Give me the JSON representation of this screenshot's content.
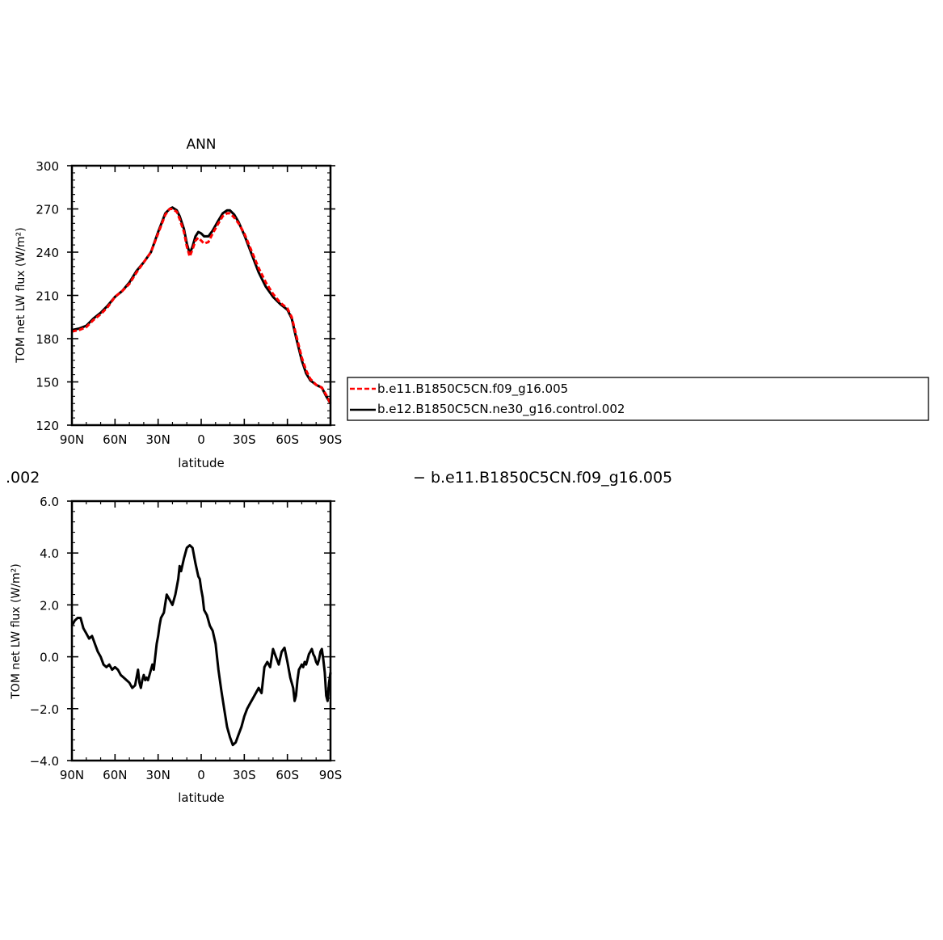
{
  "header": {
    "left_fragment": ".002",
    "right_fragment": "− b.e11.B1850C5CN.f09_g16.005"
  },
  "legend": {
    "entries": [
      {
        "label": "b.e11.B1850C5CN.f09_g16.005",
        "color": "#ff0000",
        "dash": "dashed"
      },
      {
        "label": "b.e12.B1850C5CN.ne30_g16.control.002",
        "color": "#000000",
        "dash": "solid"
      }
    ]
  },
  "chart_data": [
    {
      "type": "line",
      "title": "ANN",
      "xlabel": "latitude",
      "ylabel": "TOM net LW flux (W/m²)",
      "xlim": [
        90,
        -90
      ],
      "ylim": [
        120,
        300
      ],
      "x_ticks": [
        {
          "value": 90,
          "label": "90N"
        },
        {
          "value": 60,
          "label": "60N"
        },
        {
          "value": 30,
          "label": "30N"
        },
        {
          "value": 0,
          "label": "0"
        },
        {
          "value": -30,
          "label": "30S"
        },
        {
          "value": -60,
          "label": "60S"
        },
        {
          "value": -90,
          "label": "90S"
        }
      ],
      "y_ticks": [
        {
          "value": 300,
          "label": "300"
        },
        {
          "value": 270,
          "label": "270"
        },
        {
          "value": 240,
          "label": "240"
        },
        {
          "value": 210,
          "label": "210"
        },
        {
          "value": 180,
          "label": "180"
        },
        {
          "value": 150,
          "label": "150"
        },
        {
          "value": 120,
          "label": "120"
        }
      ],
      "series": [
        {
          "name": "b.e11.B1850C5CN.f09_g16.005",
          "color": "#ff0000",
          "dash": "dashed",
          "x": [
            90,
            85,
            80,
            75,
            70,
            65,
            60,
            55,
            50,
            45,
            40,
            35,
            30,
            25,
            22,
            20,
            17,
            15,
            12,
            10,
            8,
            6,
            4,
            2,
            0,
            -2,
            -5,
            -8,
            -12,
            -15,
            -18,
            -20,
            -23,
            -26,
            -30,
            -35,
            -40,
            -45,
            -50,
            -55,
            -60,
            -63,
            -66,
            -70,
            -73,
            -76,
            -80,
            -84,
            -87,
            -90
          ],
          "y": [
            185,
            186,
            188,
            193,
            197,
            202,
            209,
            213,
            218,
            226,
            233,
            240,
            253,
            266,
            270,
            270,
            268,
            263,
            254,
            244,
            237,
            242,
            248,
            250,
            248,
            246,
            247,
            253,
            260,
            265,
            267,
            267,
            264,
            260,
            253,
            241,
            229,
            219,
            211,
            205,
            201,
            195,
            183,
            167,
            158,
            152,
            148,
            146,
            141,
            135
          ]
        },
        {
          "name": "b.e12.B1850C5CN.ne30_g16.control.002",
          "color": "#000000",
          "dash": "solid",
          "x": [
            90,
            85,
            80,
            75,
            70,
            65,
            60,
            55,
            50,
            45,
            40,
            35,
            30,
            25,
            22,
            20,
            17,
            15,
            12,
            10,
            8,
            6,
            4,
            2,
            0,
            -2,
            -5,
            -8,
            -12,
            -15,
            -18,
            -20,
            -23,
            -26,
            -30,
            -35,
            -40,
            -45,
            -50,
            -55,
            -60,
            -63,
            -66,
            -70,
            -73,
            -76,
            -80,
            -84,
            -87,
            -90
          ],
          "y": [
            186,
            187,
            189,
            194,
            198,
            203,
            209,
            213,
            219,
            227,
            233,
            240,
            254,
            267,
            270,
            271,
            269,
            265,
            256,
            246,
            239,
            244,
            251,
            254,
            253,
            251,
            251,
            255,
            262,
            267,
            269,
            269,
            266,
            261,
            252,
            239,
            226,
            216,
            209,
            204,
            200,
            194,
            181,
            165,
            156,
            151,
            148,
            146,
            140,
            135
          ]
        }
      ]
    },
    {
      "type": "line",
      "title": "",
      "xlabel": "latitude",
      "ylabel": "TOM net LW flux (W/m²)",
      "xlim": [
        90,
        -90
      ],
      "ylim": [
        -4.0,
        6.0
      ],
      "x_ticks": [
        {
          "value": 90,
          "label": "90N"
        },
        {
          "value": 60,
          "label": "60N"
        },
        {
          "value": 30,
          "label": "30N"
        },
        {
          "value": 0,
          "label": "0"
        },
        {
          "value": -30,
          "label": "30S"
        },
        {
          "value": -60,
          "label": "60S"
        },
        {
          "value": -90,
          "label": "90S"
        }
      ],
      "y_ticks": [
        {
          "value": 6.0,
          "label": "6.0"
        },
        {
          "value": 4.0,
          "label": "4.0"
        },
        {
          "value": 2.0,
          "label": "2.0"
        },
        {
          "value": 0.0,
          "label": "0.0"
        },
        {
          "value": -2.0,
          "label": "−2.0"
        },
        {
          "value": -4.0,
          "label": "−4.0"
        }
      ],
      "series": [
        {
          "color": "#000000",
          "dash": "solid",
          "x": [
            90,
            88,
            86,
            84,
            82,
            80,
            78,
            76,
            74,
            72,
            70,
            68,
            66,
            64,
            62,
            60,
            58,
            56,
            54,
            52,
            50,
            48,
            46,
            44,
            43,
            42,
            41,
            40,
            39,
            38,
            37,
            36,
            35,
            34,
            33,
            31,
            30,
            29,
            28,
            26,
            24,
            22,
            20,
            18,
            16,
            15,
            14,
            12,
            10,
            8,
            6,
            4,
            2,
            1,
            0,
            -1,
            -2,
            -4,
            -6,
            -8,
            -10,
            -12,
            -14,
            -16,
            -18,
            -20,
            -22,
            -24,
            -26,
            -28,
            -30,
            -32,
            -34,
            -36,
            -38,
            -40,
            -42,
            -44,
            -46,
            -48,
            -50,
            -52,
            -54,
            -56,
            -58,
            -60,
            -62,
            -64,
            -65,
            -66,
            -67,
            -68,
            -69,
            -70,
            -71,
            -72,
            -73,
            -74,
            -75,
            -76,
            -77,
            -78,
            -79,
            -80,
            -81,
            -82,
            -83,
            -84,
            -85,
            -86,
            -87,
            -88,
            -89,
            -90
          ],
          "y": [
            1.2,
            1.4,
            1.5,
            1.5,
            1.1,
            0.9,
            0.7,
            0.8,
            0.5,
            0.2,
            0.0,
            -0.3,
            -0.4,
            -0.3,
            -0.5,
            -0.4,
            -0.5,
            -0.7,
            -0.8,
            -0.9,
            -1.0,
            -1.2,
            -1.1,
            -0.5,
            -1.0,
            -1.2,
            -0.9,
            -0.7,
            -0.9,
            -0.8,
            -0.9,
            -0.7,
            -0.5,
            -0.3,
            -0.5,
            0.5,
            0.8,
            1.2,
            1.5,
            1.7,
            2.4,
            2.2,
            2.0,
            2.4,
            3.0,
            3.5,
            3.3,
            3.8,
            4.2,
            4.3,
            4.2,
            3.6,
            3.1,
            3.0,
            2.6,
            2.3,
            1.8,
            1.6,
            1.2,
            1.0,
            0.5,
            -0.5,
            -1.3,
            -2.0,
            -2.7,
            -3.1,
            -3.4,
            -3.3,
            -3.0,
            -2.7,
            -2.3,
            -2.0,
            -1.8,
            -1.6,
            -1.4,
            -1.2,
            -1.4,
            -0.4,
            -0.2,
            -0.4,
            0.3,
            0.0,
            -0.3,
            0.2,
            0.35,
            -0.2,
            -0.8,
            -1.2,
            -1.7,
            -1.5,
            -0.9,
            -0.5,
            -0.4,
            -0.3,
            -0.4,
            -0.2,
            -0.3,
            -0.1,
            0.1,
            0.2,
            0.3,
            0.1,
            0.0,
            -0.2,
            -0.3,
            -0.1,
            0.2,
            0.3,
            -0.1,
            -0.6,
            -1.5,
            -1.7,
            -1.0,
            -0.6
          ]
        }
      ]
    }
  ]
}
